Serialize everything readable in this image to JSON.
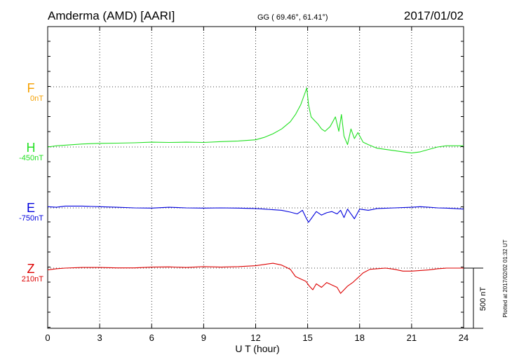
{
  "header": {
    "station": "Amderma (AMD)  [AARI]",
    "coords": "GG ( 69.46°,  61.41°)",
    "date": "2017/01/02"
  },
  "side_note": "Plotted at 2017/02/02 01:32 UT",
  "scale_label": "500 nT",
  "chart_data": {
    "type": "line",
    "xlabel": "U T (hour)",
    "xlim": [
      0,
      24
    ],
    "xticks": [
      "0",
      "3",
      "6",
      "9",
      "12",
      "15",
      "18",
      "21",
      "24"
    ],
    "scale_bar_nT": 500,
    "grid": true,
    "series": [
      {
        "name": "F",
        "baseline_label": "0nT",
        "color": "#f5a000",
        "x": [],
        "y": []
      },
      {
        "name": "H",
        "baseline_label": "-450nT",
        "color": "#22e022",
        "x": [
          0,
          0.5,
          1,
          2,
          3,
          4,
          5,
          6,
          7,
          8,
          9,
          10,
          11,
          12,
          12.5,
          13,
          13.5,
          14,
          14.3,
          14.6,
          14.8,
          14.95,
          15.05,
          15.2,
          15.4,
          15.6,
          15.8,
          16,
          16.3,
          16.6,
          16.8,
          16.95,
          17.1,
          17.3,
          17.5,
          17.7,
          17.9,
          18.2,
          18.5,
          19,
          19.5,
          20,
          20.5,
          21,
          21.5,
          22,
          22.5,
          23,
          23.5,
          24
        ],
        "y": [
          -450,
          -440,
          -435,
          -425,
          -420,
          -418,
          -415,
          -410,
          -412,
          -410,
          -412,
          -405,
          -400,
          -390,
          -370,
          -340,
          -300,
          -240,
          -180,
          -100,
          -20,
          40,
          -100,
          -200,
          -230,
          -260,
          -300,
          -320,
          -280,
          -200,
          -320,
          -180,
          -360,
          -430,
          -300,
          -380,
          -330,
          -410,
          -430,
          -460,
          -470,
          -480,
          -490,
          -500,
          -490,
          -470,
          -450,
          -440,
          -440,
          -440
        ]
      },
      {
        "name": "E",
        "baseline_label": "-750nT",
        "color": "#0000dd",
        "x": [
          0,
          0.5,
          1,
          2,
          3,
          4,
          5,
          6,
          7,
          8,
          9,
          10,
          11,
          12,
          12.5,
          13,
          13.5,
          14,
          14.4,
          14.7,
          14.9,
          15.05,
          15.2,
          15.5,
          15.8,
          16.1,
          16.4,
          16.7,
          16.9,
          17.1,
          17.3,
          17.5,
          17.7,
          18,
          18.5,
          19,
          20,
          21,
          21.5,
          22,
          22.5,
          23,
          23.5,
          24
        ],
        "y": [
          -740,
          -745,
          -735,
          -735,
          -740,
          -745,
          -750,
          -752,
          -745,
          -750,
          -752,
          -750,
          -752,
          -755,
          -760,
          -765,
          -770,
          -785,
          -800,
          -770,
          -830,
          -870,
          -840,
          -780,
          -810,
          -790,
          -780,
          -800,
          -770,
          -830,
          -760,
          -800,
          -840,
          -760,
          -770,
          -755,
          -750,
          -745,
          -740,
          -745,
          -750,
          -752,
          -755,
          -760
        ]
      },
      {
        "name": "Z",
        "baseline_label": "210nT",
        "color": "#dd0000",
        "x": [
          0,
          0.5,
          1,
          2,
          3,
          4,
          5,
          6,
          7,
          8,
          9,
          10,
          11,
          12,
          12.5,
          13,
          13.5,
          14,
          14.3,
          14.6,
          14.9,
          15.1,
          15.3,
          15.5,
          15.8,
          16.1,
          16.4,
          16.7,
          16.9,
          17.1,
          17.3,
          17.6,
          17.9,
          18.2,
          18.6,
          19,
          19.5,
          20,
          20.5,
          21,
          21.5,
          22,
          22.5,
          23,
          23.5,
          24
        ],
        "y": [
          195,
          205,
          210,
          215,
          215,
          212,
          212,
          218,
          220,
          215,
          222,
          218,
          222,
          230,
          240,
          250,
          235,
          200,
          140,
          120,
          100,
          60,
          30,
          80,
          50,
          90,
          70,
          50,
          0,
          30,
          60,
          90,
          130,
          170,
          200,
          205,
          210,
          200,
          185,
          185,
          190,
          195,
          205,
          210,
          210,
          210
        ]
      }
    ]
  }
}
